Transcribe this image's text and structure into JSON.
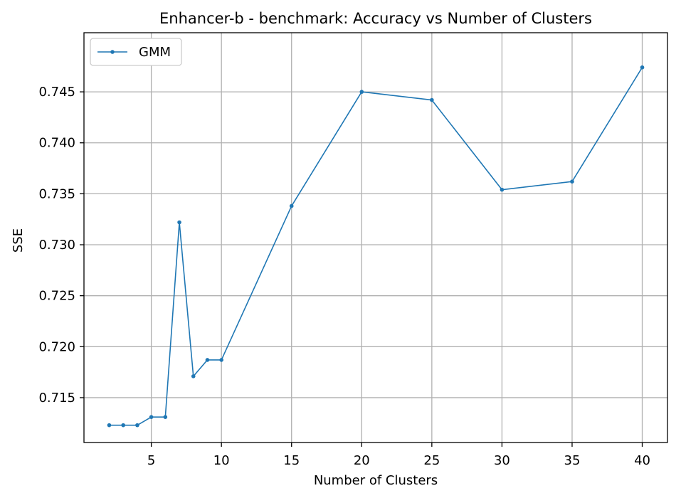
{
  "chart_data": {
    "type": "line",
    "title": "Enhancer-b - benchmark: Accuracy vs Number of Clusters",
    "xlabel": "Number of Clusters",
    "ylabel": "SSE",
    "xlim": [
      0.2,
      41.8
    ],
    "ylim": [
      0.7106,
      0.7508
    ],
    "xticks": [
      5,
      10,
      15,
      20,
      25,
      30,
      35,
      40
    ],
    "yticks": [
      0.715,
      0.72,
      0.725,
      0.73,
      0.735,
      0.74,
      0.745
    ],
    "ytick_labels": [
      "0.715",
      "0.720",
      "0.725",
      "0.730",
      "0.735",
      "0.740",
      "0.745"
    ],
    "grid": true,
    "legend_position": "top-left",
    "series": [
      {
        "name": "GMM",
        "color": "#1f77b4",
        "marker": "circle",
        "x": [
          2,
          3,
          4,
          5,
          6,
          7,
          8,
          9,
          10,
          15,
          20,
          25,
          30,
          35,
          40
        ],
        "y": [
          0.7123,
          0.7123,
          0.7123,
          0.7131,
          0.7131,
          0.7322,
          0.7171,
          0.7187,
          0.7187,
          0.7338,
          0.745,
          0.7442,
          0.7354,
          0.7362,
          0.7474
        ]
      }
    ]
  }
}
